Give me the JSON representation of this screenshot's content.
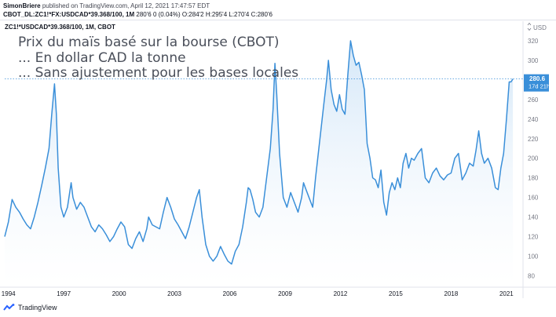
{
  "header": {
    "author": "SimonBriere",
    "published": "published on TradingView.com, April 12, 2021 17:47:57 EDT",
    "symbol": "CBOT_DL:ZC1!*FX:USDCAD*39.368/100, 1M",
    "ohlc": "280'6 0 (0.04%) O:284'2 H:295'4 L:270'4 C:280'6"
  },
  "chart_label": "ZC1!*USDCAD*39.368/100, 1M, CBOT",
  "annotations": [
    "Prix du maïs basé sur la bourse (CBOT)",
    "... En dollar CAD la tonne",
    "... Sans ajustement pour les bases locales"
  ],
  "price_label": {
    "value": "280.6",
    "countdown": "17d 21h",
    "currency": "USD"
  },
  "footer": {
    "brand": "TradingView"
  },
  "colors": {
    "line": "#3a8fd9",
    "fill_top": "#cfe4f7",
    "fill_bottom": "#ffffff",
    "label_bg": "#3a8fd9",
    "axis_text": "#787b86"
  },
  "chart_data": {
    "type": "area",
    "ylabel": "USD",
    "ylim": [
      70,
      340
    ],
    "yticks": [
      80,
      100,
      120,
      140,
      160,
      180,
      200,
      220,
      240,
      260,
      280,
      300,
      320
    ],
    "xlim": [
      1993.8,
      2021.9
    ],
    "xticks": [
      {
        "value": 1994,
        "label": "1994"
      },
      {
        "value": 1997,
        "label": "1997"
      },
      {
        "value": 2000,
        "label": "2000"
      },
      {
        "value": 2003,
        "label": "2003"
      },
      {
        "value": 2006,
        "label": "2006"
      },
      {
        "value": 2009,
        "label": "2009"
      },
      {
        "value": 2012,
        "label": "2012"
      },
      {
        "value": 2015,
        "label": "2015"
      },
      {
        "value": 2018,
        "label": "2018"
      },
      {
        "value": 2021,
        "label": "2021"
      }
    ],
    "series": [
      {
        "points": [
          [
            1993.8,
            120
          ],
          [
            1994.0,
            135
          ],
          [
            1994.2,
            158
          ],
          [
            1994.4,
            150
          ],
          [
            1994.6,
            145
          ],
          [
            1994.8,
            138
          ],
          [
            1995.0,
            132
          ],
          [
            1995.2,
            128
          ],
          [
            1995.4,
            140
          ],
          [
            1995.6,
            155
          ],
          [
            1995.8,
            172
          ],
          [
            1996.0,
            190
          ],
          [
            1996.2,
            210
          ],
          [
            1996.35,
            245
          ],
          [
            1996.5,
            276
          ],
          [
            1996.6,
            245
          ],
          [
            1996.7,
            190
          ],
          [
            1996.85,
            150
          ],
          [
            1997.0,
            140
          ],
          [
            1997.2,
            150
          ],
          [
            1997.4,
            175
          ],
          [
            1997.5,
            160
          ],
          [
            1997.7,
            148
          ],
          [
            1997.9,
            155
          ],
          [
            1998.1,
            150
          ],
          [
            1998.3,
            140
          ],
          [
            1998.5,
            130
          ],
          [
            1998.7,
            125
          ],
          [
            1998.9,
            132
          ],
          [
            1999.1,
            128
          ],
          [
            1999.3,
            122
          ],
          [
            1999.5,
            115
          ],
          [
            1999.7,
            120
          ],
          [
            1999.9,
            128
          ],
          [
            2000.1,
            135
          ],
          [
            2000.3,
            130
          ],
          [
            2000.5,
            112
          ],
          [
            2000.7,
            108
          ],
          [
            2000.9,
            118
          ],
          [
            2001.1,
            125
          ],
          [
            2001.3,
            115
          ],
          [
            2001.5,
            128
          ],
          [
            2001.6,
            140
          ],
          [
            2001.8,
            132
          ],
          [
            2002.0,
            130
          ],
          [
            2002.2,
            128
          ],
          [
            2002.4,
            145
          ],
          [
            2002.6,
            160
          ],
          [
            2002.8,
            150
          ],
          [
            2003.0,
            138
          ],
          [
            2003.2,
            132
          ],
          [
            2003.4,
            125
          ],
          [
            2003.6,
            118
          ],
          [
            2003.8,
            130
          ],
          [
            2004.0,
            145
          ],
          [
            2004.2,
            160
          ],
          [
            2004.35,
            168
          ],
          [
            2004.5,
            140
          ],
          [
            2004.7,
            112
          ],
          [
            2004.9,
            100
          ],
          [
            2005.1,
            95
          ],
          [
            2005.3,
            100
          ],
          [
            2005.5,
            110
          ],
          [
            2005.7,
            102
          ],
          [
            2005.9,
            95
          ],
          [
            2006.1,
            92
          ],
          [
            2006.3,
            105
          ],
          [
            2006.5,
            112
          ],
          [
            2006.7,
            130
          ],
          [
            2006.9,
            155
          ],
          [
            2007.0,
            170
          ],
          [
            2007.1,
            168
          ],
          [
            2007.25,
            158
          ],
          [
            2007.4,
            145
          ],
          [
            2007.6,
            140
          ],
          [
            2007.8,
            150
          ],
          [
            2008.0,
            180
          ],
          [
            2008.2,
            210
          ],
          [
            2008.35,
            250
          ],
          [
            2008.45,
            297
          ],
          [
            2008.55,
            265
          ],
          [
            2008.7,
            205
          ],
          [
            2008.9,
            160
          ],
          [
            2009.1,
            150
          ],
          [
            2009.3,
            165
          ],
          [
            2009.5,
            155
          ],
          [
            2009.7,
            145
          ],
          [
            2009.9,
            160
          ],
          [
            2010.0,
            175
          ],
          [
            2010.1,
            170
          ],
          [
            2010.3,
            160
          ],
          [
            2010.5,
            150
          ],
          [
            2010.65,
            180
          ],
          [
            2010.8,
            205
          ],
          [
            2010.95,
            230
          ],
          [
            2011.1,
            255
          ],
          [
            2011.25,
            280
          ],
          [
            2011.35,
            300
          ],
          [
            2011.5,
            270
          ],
          [
            2011.65,
            255
          ],
          [
            2011.8,
            248
          ],
          [
            2011.95,
            265
          ],
          [
            2012.1,
            250
          ],
          [
            2012.25,
            245
          ],
          [
            2012.4,
            285
          ],
          [
            2012.55,
            320
          ],
          [
            2012.7,
            305
          ],
          [
            2012.85,
            295
          ],
          [
            2013.0,
            298
          ],
          [
            2013.15,
            285
          ],
          [
            2013.3,
            270
          ],
          [
            2013.45,
            215
          ],
          [
            2013.6,
            200
          ],
          [
            2013.75,
            180
          ],
          [
            2013.9,
            178
          ],
          [
            2014.05,
            170
          ],
          [
            2014.2,
            188
          ],
          [
            2014.35,
            155
          ],
          [
            2014.5,
            142
          ],
          [
            2014.65,
            165
          ],
          [
            2014.8,
            175
          ],
          [
            2014.95,
            168
          ],
          [
            2015.1,
            180
          ],
          [
            2015.25,
            170
          ],
          [
            2015.4,
            195
          ],
          [
            2015.55,
            205
          ],
          [
            2015.7,
            190
          ],
          [
            2015.85,
            200
          ],
          [
            2016.0,
            198
          ],
          [
            2016.2,
            205
          ],
          [
            2016.4,
            210
          ],
          [
            2016.6,
            180
          ],
          [
            2016.8,
            175
          ],
          [
            2017.0,
            185
          ],
          [
            2017.2,
            190
          ],
          [
            2017.4,
            182
          ],
          [
            2017.6,
            178
          ],
          [
            2017.8,
            183
          ],
          [
            2018.0,
            185
          ],
          [
            2018.2,
            200
          ],
          [
            2018.4,
            205
          ],
          [
            2018.6,
            178
          ],
          [
            2018.8,
            185
          ],
          [
            2019.0,
            195
          ],
          [
            2019.2,
            192
          ],
          [
            2019.35,
            208
          ],
          [
            2019.5,
            228
          ],
          [
            2019.65,
            205
          ],
          [
            2019.8,
            195
          ],
          [
            2020.0,
            200
          ],
          [
            2020.2,
            190
          ],
          [
            2020.4,
            170
          ],
          [
            2020.55,
            168
          ],
          [
            2020.7,
            190
          ],
          [
            2020.85,
            205
          ],
          [
            2021.0,
            240
          ],
          [
            2021.15,
            278
          ],
          [
            2021.25,
            278
          ],
          [
            2021.35,
            281
          ]
        ]
      }
    ]
  }
}
